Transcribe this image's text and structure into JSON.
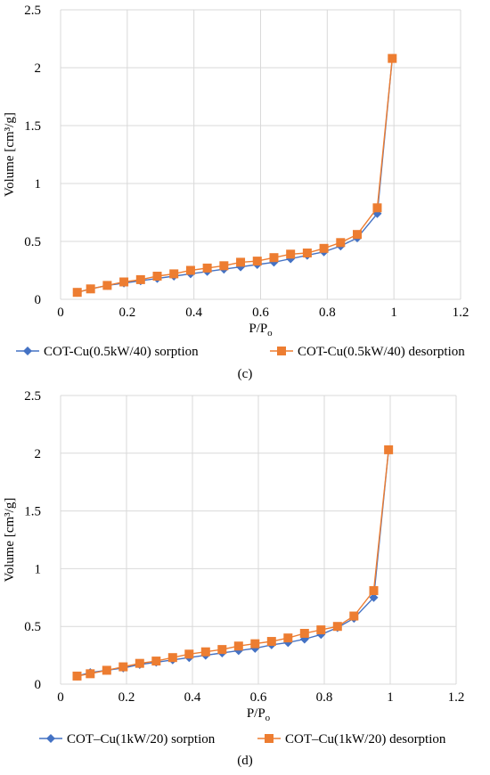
{
  "chart_data": [
    {
      "type": "line",
      "panel_label": "(c)",
      "xlabel_main": "P/P",
      "xlabel_sub": "o",
      "ylabel": "Volume [cm³/g]",
      "xlim": [
        0,
        1.2
      ],
      "ylim": [
        0,
        2.5
      ],
      "xticks": [
        "0",
        "0.2",
        "0.4",
        "0.6",
        "0.8",
        "1",
        "1.2"
      ],
      "yticks": [
        "0",
        "0.5",
        "1",
        "1.5",
        "2",
        "2.5"
      ],
      "grid": true,
      "legend_position": "bottom",
      "series": [
        {
          "name": "COT-Cu(0.5kW/40) sorption",
          "color": "#4472C4",
          "marker": "diamond",
          "x": [
            0.05,
            0.09,
            0.14,
            0.19,
            0.24,
            0.29,
            0.34,
            0.39,
            0.44,
            0.49,
            0.54,
            0.59,
            0.64,
            0.69,
            0.74,
            0.79,
            0.84,
            0.89,
            0.95,
            0.995
          ],
          "y": [
            0.06,
            0.09,
            0.12,
            0.14,
            0.16,
            0.18,
            0.2,
            0.22,
            0.24,
            0.26,
            0.28,
            0.3,
            0.32,
            0.35,
            0.38,
            0.41,
            0.46,
            0.53,
            0.74,
            2.08
          ]
        },
        {
          "name": "COT-Cu(0.5kW/40) desorption",
          "color": "#ED7D31",
          "marker": "square",
          "x": [
            0.05,
            0.09,
            0.14,
            0.19,
            0.24,
            0.29,
            0.34,
            0.39,
            0.44,
            0.49,
            0.54,
            0.59,
            0.64,
            0.69,
            0.74,
            0.79,
            0.84,
            0.89,
            0.95,
            0.995
          ],
          "y": [
            0.06,
            0.09,
            0.12,
            0.15,
            0.17,
            0.2,
            0.22,
            0.25,
            0.27,
            0.29,
            0.32,
            0.33,
            0.36,
            0.39,
            0.4,
            0.44,
            0.49,
            0.56,
            0.79,
            2.08
          ]
        }
      ]
    },
    {
      "type": "line",
      "panel_label": "(d)",
      "xlabel_main": "P/P",
      "xlabel_sub": "o",
      "ylabel": "Volume [cm³/g]",
      "xlim": [
        0,
        1.2
      ],
      "ylim": [
        0,
        2.5
      ],
      "xticks": [
        "0",
        "0.2",
        "0.4",
        "0.6",
        "0.8",
        "1",
        "1.2"
      ],
      "yticks": [
        "0",
        "0.5",
        "1",
        "1.5",
        "2",
        "2.5"
      ],
      "grid": true,
      "legend_position": "bottom",
      "series": [
        {
          "name": "COT–Cu(1kW/20) sorption",
          "color": "#4472C4",
          "marker": "diamond",
          "x": [
            0.05,
            0.09,
            0.14,
            0.19,
            0.24,
            0.29,
            0.34,
            0.39,
            0.44,
            0.49,
            0.54,
            0.59,
            0.64,
            0.69,
            0.74,
            0.79,
            0.84,
            0.89,
            0.95,
            0.995
          ],
          "y": [
            0.07,
            0.1,
            0.12,
            0.14,
            0.17,
            0.19,
            0.21,
            0.23,
            0.25,
            0.27,
            0.29,
            0.31,
            0.34,
            0.36,
            0.39,
            0.43,
            0.49,
            0.57,
            0.75,
            2.03
          ]
        },
        {
          "name": "COT–Cu(1kW/20) desorption",
          "color": "#ED7D31",
          "marker": "square",
          "x": [
            0.05,
            0.09,
            0.14,
            0.19,
            0.24,
            0.29,
            0.34,
            0.39,
            0.44,
            0.49,
            0.54,
            0.59,
            0.64,
            0.69,
            0.74,
            0.79,
            0.84,
            0.89,
            0.95,
            0.995
          ],
          "y": [
            0.07,
            0.09,
            0.12,
            0.15,
            0.18,
            0.2,
            0.23,
            0.26,
            0.28,
            0.3,
            0.33,
            0.35,
            0.37,
            0.4,
            0.44,
            0.47,
            0.5,
            0.59,
            0.81,
            2.03
          ]
        }
      ]
    }
  ]
}
